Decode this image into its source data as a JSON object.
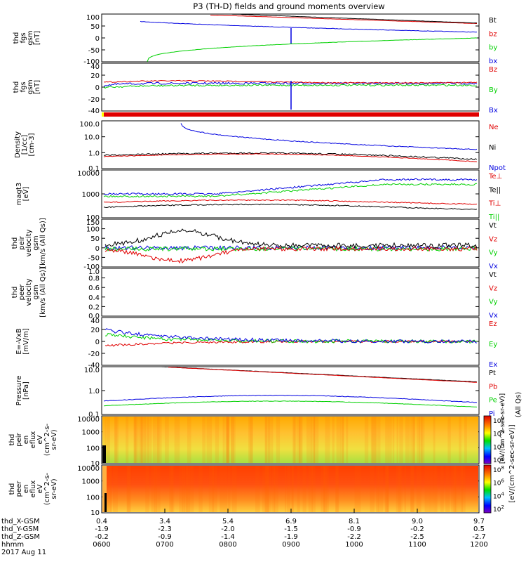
{
  "title": "P3 (TH-D) fields and ground moments overview",
  "colors": {
    "black": "#000000",
    "red": "#e00000",
    "green": "#00d000",
    "blue": "#0000e0",
    "yellow": "#ffff00"
  },
  "chart_data": [
    {
      "type": "line",
      "panel": "fgs_gsm",
      "ylabel": [
        "thd",
        "fgs",
        "gsm",
        "[nT]"
      ],
      "ylim": [
        -100,
        100
      ],
      "ticks": [
        100,
        50,
        0,
        -50,
        -100
      ],
      "series": [
        {
          "name": "Bt",
          "color": "black"
        },
        {
          "name": "bz",
          "color": "red"
        },
        {
          "name": "by",
          "color": "green"
        },
        {
          "name": "bx",
          "color": "blue"
        }
      ]
    },
    {
      "type": "line",
      "panel": "fgs_dsl",
      "ylabel": [
        "thd",
        "fgs",
        "gsm",
        "[nT]"
      ],
      "ylim": [
        -50,
        40
      ],
      "ticks": [
        40,
        20,
        0,
        -20,
        -40
      ],
      "series": [
        {
          "name": "Bz",
          "color": "red"
        },
        {
          "name": "By",
          "color": "green"
        },
        {
          "name": "Bx",
          "color": "blue"
        }
      ]
    },
    {
      "type": "bar",
      "panel": "mode_bar"
    },
    {
      "type": "line",
      "panel": "density",
      "ylabel": [
        "Density",
        "[1/cc]",
        "[cm-3]"
      ],
      "log": true,
      "ticks": [
        "100.0",
        "10.0",
        "1.0",
        "0.1"
      ],
      "series": [
        {
          "name": "Ne",
          "color": "red"
        },
        {
          "name": "Ni",
          "color": "black"
        },
        {
          "name": "Npot",
          "color": "blue"
        }
      ]
    },
    {
      "type": "line",
      "panel": "temperature",
      "ylabel": [
        "magt3",
        "[eV]"
      ],
      "log": true,
      "ticks": [
        "10000",
        "1000",
        "100"
      ],
      "series": [
        {
          "name": "Te⊥",
          "color": "red"
        },
        {
          "name": "Te||",
          "color": "black"
        },
        {
          "name": "Ti⊥",
          "color": "red"
        },
        {
          "name": "Ti||",
          "color": "green"
        }
      ]
    },
    {
      "type": "line",
      "panel": "peir_velocity",
      "ylabel": [
        "thd",
        "peir",
        "velocity",
        "gsm",
        "[km/s (All Qs)]"
      ],
      "ylim": [
        -100,
        150
      ],
      "ticks": [
        150,
        100,
        50,
        0,
        -50,
        -100
      ],
      "series": [
        {
          "name": "Vt",
          "color": "black"
        },
        {
          "name": "Vz",
          "color": "red"
        },
        {
          "name": "Vy",
          "color": "green"
        },
        {
          "name": "Vx",
          "color": "blue"
        }
      ]
    },
    {
      "type": "line",
      "panel": "peer_velocity",
      "ylabel": [
        "thd",
        "peer",
        "velocity",
        "gsm",
        "[km/s (All Qs)]"
      ],
      "ylim": [
        0,
        1
      ],
      "ticks": [
        "1.0",
        "0.8",
        "0.6",
        "0.4",
        "0.2",
        "0.0"
      ],
      "series": [
        {
          "name": "Vt",
          "color": "black"
        },
        {
          "name": "Vz",
          "color": "red"
        },
        {
          "name": "Vy",
          "color": "green"
        },
        {
          "name": "Vx",
          "color": "blue"
        }
      ]
    },
    {
      "type": "line",
      "panel": "efield",
      "ylabel": [
        "E=-VxB",
        "[mV/m]"
      ],
      "ylim": [
        -40,
        40
      ],
      "ticks": [
        40,
        20,
        0,
        -20,
        -40
      ],
      "series": [
        {
          "name": "Ez",
          "color": "red"
        },
        {
          "name": "Ey",
          "color": "green"
        },
        {
          "name": "Ex",
          "color": "blue"
        }
      ]
    },
    {
      "type": "line",
      "panel": "pressure",
      "ylabel": [
        "Pressure",
        "[nPa]"
      ],
      "log": true,
      "ticks": [
        "10.0",
        "1.0",
        "0.1"
      ],
      "right_note": "(All Qs)",
      "series": [
        {
          "name": "Pt",
          "color": "black"
        },
        {
          "name": "Pb",
          "color": "red"
        },
        {
          "name": "Pe",
          "color": "green"
        },
        {
          "name": "Pi",
          "color": "blue"
        }
      ]
    },
    {
      "type": "heatmap",
      "panel": "peir_spec",
      "ylabel": [
        "thd",
        "peir",
        "en",
        "eflux",
        "eV",
        "(cm^2-s-",
        "sr-eV)"
      ],
      "ticks": [
        "10000",
        "1000",
        "100",
        "10"
      ]
    },
    {
      "type": "heatmap",
      "panel": "peer_spec",
      "ylabel": [
        "thd",
        "peer",
        "en",
        "eflux",
        "eV",
        "(cm^2-s-",
        "sr-eV)"
      ],
      "ticks": [
        "10000",
        "1000",
        "100",
        "10"
      ]
    }
  ],
  "colorbar": {
    "unit": "[eV/(cm^2-sec-sr-eV)]",
    "ticks_top": [
      "10^8",
      "10^6",
      "10^4",
      "10^2"
    ],
    "ticks_bottom": [
      "10^8",
      "10^6",
      "10^4",
      "10^2"
    ],
    "unit_overlay": "[eV/(cm^2-sec-sr-eV)]"
  },
  "xaxis": {
    "rows": [
      {
        "name": "thd_X-GSM",
        "values": [
          "0.4",
          "3.4",
          "5.4",
          "6.9",
          "8.1",
          "9.0",
          "9.7"
        ]
      },
      {
        "name": "thd_Y-GSM",
        "values": [
          "-1.9",
          "-2.3",
          "-2.0",
          "-1.5",
          "-0.9",
          "-0.2",
          "0.5"
        ]
      },
      {
        "name": "thd_Z-GSM",
        "values": [
          "-0.2",
          "-0.9",
          "-1.4",
          "-1.9",
          "-2.2",
          "-2.5",
          "-2.7"
        ]
      },
      {
        "name": "hhmm",
        "values": [
          "0600",
          "0700",
          "0800",
          "0900",
          "1000",
          "1100",
          "1200"
        ]
      }
    ],
    "date": "2017 Aug 11"
  }
}
